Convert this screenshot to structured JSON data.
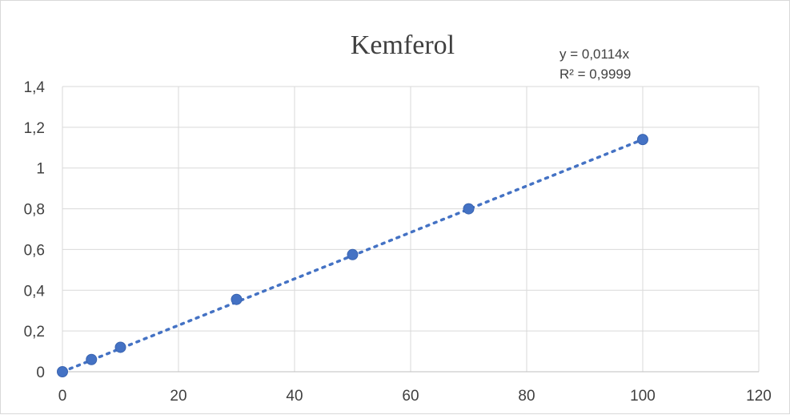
{
  "chart_data": {
    "type": "scatter",
    "title": "Kemferol",
    "xlabel": "",
    "ylabel": "",
    "xlim": [
      0,
      120
    ],
    "ylim": [
      0,
      1.4
    ],
    "x_ticks": [
      "0",
      "20",
      "40",
      "60",
      "80",
      "100",
      "120"
    ],
    "y_ticks": [
      "0",
      "0,2",
      "0,4",
      "0,6",
      "0,8",
      "1",
      "1,2",
      "1,4"
    ],
    "grid": true,
    "series": [
      {
        "x": [
          0,
          5,
          10,
          30,
          50,
          70,
          100
        ],
        "y": [
          0,
          0.06,
          0.12,
          0.355,
          0.575,
          0.8,
          1.14
        ],
        "color": "#4472c4",
        "marker": "circle"
      }
    ],
    "trendline": {
      "type": "linear",
      "slope": 0.0114,
      "intercept": 0,
      "style": "dotted",
      "equation_label": "y = 0,0114x",
      "r2_label": "R² = 0,9999"
    }
  }
}
